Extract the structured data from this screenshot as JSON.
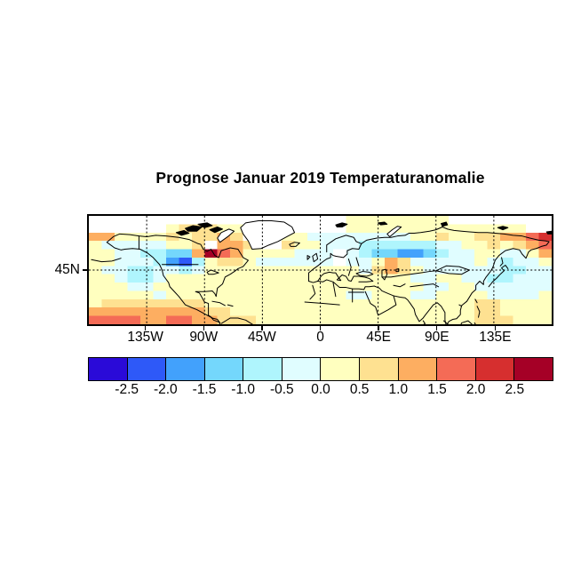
{
  "title": "Prognose Januar 2019 Temperaturanomalie",
  "axes": {
    "y_tick_label": "45N",
    "y_tick_lat": 45,
    "x_tick_labels": [
      "135W",
      "90W",
      "45W",
      "0",
      "45E",
      "90E",
      "135E"
    ],
    "x_tick_lons": [
      -135,
      -90,
      -45,
      0,
      45,
      90,
      135
    ]
  },
  "colorbar": {
    "tick_labels": [
      "-2.5",
      "-2.0",
      "-1.5",
      "-1.0",
      "-0.5",
      "0.0",
      "0.5",
      "1.0",
      "1.5",
      "2.0",
      "2.5"
    ],
    "colors": [
      "#2A0AD8",
      "#2E59F8",
      "#42A1FC",
      "#74D7FC",
      "#AFF5FD",
      "#E0FDFF",
      "#FFFFBF",
      "#FEE191",
      "#FDAE61",
      "#F46B56",
      "#D62F2F",
      "#A50026"
    ]
  },
  "chart_data": {
    "type": "heatmap",
    "title": "Prognose Januar 2019 Temperaturanomalie",
    "variable": "Temperaturanomalie",
    "period": "Januar 2019",
    "lon_range": [
      -180,
      180
    ],
    "lat_range": [
      6,
      84
    ],
    "grid_on": true,
    "graticule": {
      "lon_lines_deg": [
        -135,
        -90,
        -45,
        0,
        45,
        90,
        135
      ],
      "lat_lines_deg": [
        45
      ],
      "style": "dashed"
    },
    "x_tick_labels": [
      "135W",
      "90W",
      "45W",
      "0",
      "45E",
      "90E",
      "135E"
    ],
    "y_tick_labels": [
      "45N"
    ],
    "legend_position": "bottom",
    "colorbar_tick_values": [
      -2.5,
      -2.0,
      -1.5,
      -1.0,
      -0.5,
      0.0,
      0.5,
      1.0,
      1.5,
      2.0,
      2.5
    ],
    "colorbar_colors_low_to_high": [
      "#2A0AD8",
      "#2E59F8",
      "#42A1FC",
      "#74D7FC",
      "#AFF5FD",
      "#E0FDFF",
      "#FFFFBF",
      "#FEE191",
      "#FDAE61",
      "#F46B56",
      "#D62F2F",
      "#A50026"
    ],
    "anomaly_grid": {
      "note": "coarse 10deg x 6deg digitization of the map; chars 0-9,a,b = colorbar class index low(-2.5)to high(+2.5); '.' = white / no data",
      "cols": 36,
      "rows": 13,
      "lon0": -180,
      "dlon": 10,
      "lat0": 84,
      "dlat": -6,
      "rows_data": [
        "....................66666666........",
        "......677766........66666666666666..",
        "886666767787...66555555556676677889a",
        "655555667.887..766555444444556676789",
        "665544338b986666555.5433223455665568",
        "6655542146776555555.5568755555654556",
        "655445545666666666666578765555554455",
        "665445666666666666666666655665544555",
        "666556666666666666666666665566555555",
        "666665666666666666665566655666655556",
        "677777777666666666666666666666776666",
        "888888888776666666666666666666776666",
        "999988998877766666666666666666777666"
      ]
    },
    "notable_features": [
      "cold pocket ~ -2 to -2.5 over central North America near 110W/48N",
      "warm spot ~ +2.5 south of Hudson Bay near 85W/53N",
      "cold band ~ -1.5 over western Siberia 40E-90E around 55-62N",
      "warm anomaly ~ +1.5 to +2 over Chukotka / Bering 150E-180",
      "warm band ~ +1 to +1.5 along southern map edge in eastern tropical Pacific",
      "mostly +0 to +0.5 (pale yellow) elsewhere"
    ]
  }
}
